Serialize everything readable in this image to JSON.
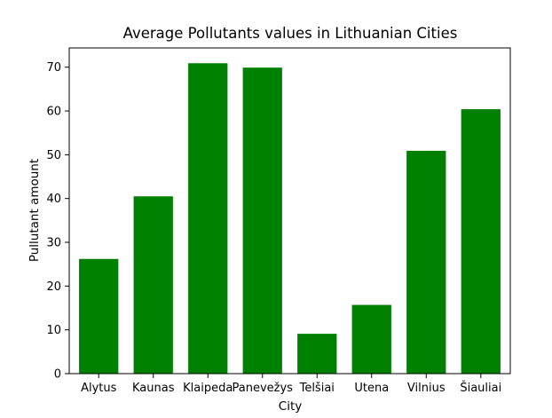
{
  "chart_data": {
    "type": "bar",
    "title": "Average Pollutants values in Lithuanian Cities",
    "xlabel": "City",
    "ylabel": "Pullutant amount",
    "categories": [
      "Alytus",
      "Kaunas",
      "Klaipeda",
      "Panevežys",
      "Telšiai",
      "Utena",
      "Vilnius",
      "Šiauliai"
    ],
    "values": [
      26.2,
      40.5,
      70.9,
      69.9,
      9.1,
      15.7,
      50.9,
      60.4
    ],
    "ylim": [
      0,
      74.4
    ],
    "yticks": [
      0,
      10,
      20,
      30,
      40,
      50,
      60,
      70
    ],
    "bar_color": "#008000",
    "grid": false,
    "legend": false
  }
}
